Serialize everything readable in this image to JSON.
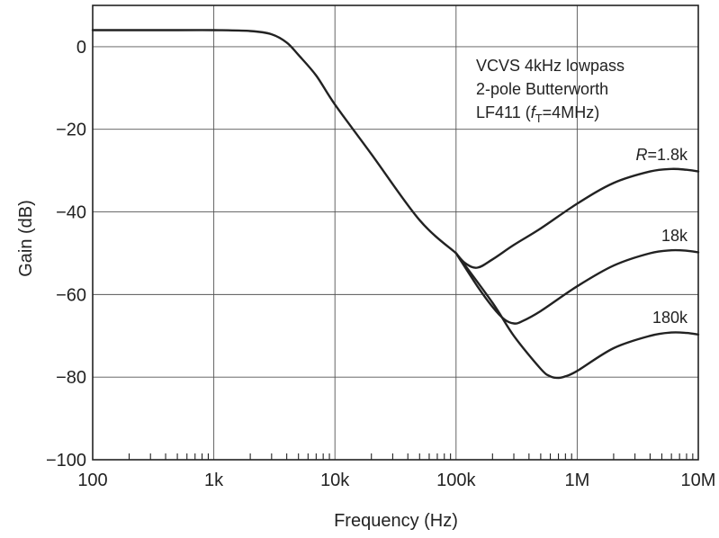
{
  "chart_data": {
    "type": "line",
    "xlabel": "Frequency (Hz)",
    "ylabel": "Gain (dB)",
    "xscale": "log",
    "xlim": [
      100,
      10000000
    ],
    "ylim": [
      -100,
      10
    ],
    "grid": true,
    "x_ticks": [
      {
        "value": 100,
        "label": "100"
      },
      {
        "value": 1000,
        "label": "1k"
      },
      {
        "value": 10000,
        "label": "10k"
      },
      {
        "value": 100000,
        "label": "100k"
      },
      {
        "value": 1000000,
        "label": "1M"
      },
      {
        "value": 10000000,
        "label": "10M"
      }
    ],
    "y_ticks": [
      {
        "value": 0,
        "label": "0"
      },
      {
        "value": -20,
        "label": "−20"
      },
      {
        "value": -40,
        "label": "−40"
      },
      {
        "value": -60,
        "label": "−60"
      },
      {
        "value": -80,
        "label": "−80"
      },
      {
        "value": -100,
        "label": "−100"
      }
    ],
    "annotation_lines": [
      {
        "text": "VCVS 4kHz lowpass"
      },
      {
        "text": "2-pole Butterworth"
      },
      {
        "parts": [
          "LF411 (",
          "f",
          "T",
          "=4MHz)"
        ]
      }
    ],
    "shared_curve": {
      "x": [
        100,
        200,
        500,
        1000,
        2000,
        3000,
        4000,
        5000,
        7000,
        10000,
        20000,
        50000,
        100000
      ],
      "y": [
        4,
        4,
        4,
        4,
        3.8,
        3,
        1,
        -2,
        -7,
        -14,
        -26,
        -42,
        -50
      ]
    },
    "series": [
      {
        "name": "R=1.8k",
        "label_parts": [
          "R",
          "=1.8k"
        ],
        "x": [
          100000,
          120000,
          150000,
          200000,
          300000,
          500000,
          1000000,
          2000000,
          4000000,
          6000000,
          8000000,
          10000000
        ],
        "y": [
          -50,
          -52.5,
          -53.5,
          -51.5,
          -48,
          -44,
          -38,
          -33,
          -30.2,
          -29.6,
          -29.8,
          -30.2
        ]
      },
      {
        "name": "18k",
        "label_parts": [
          "18k"
        ],
        "x": [
          100000,
          150000,
          200000,
          250000,
          300000,
          350000,
          500000,
          1000000,
          2000000,
          4000000,
          6000000,
          8000000,
          10000000
        ],
        "y": [
          -50,
          -58,
          -63,
          -66,
          -67,
          -66.5,
          -64,
          -58,
          -53,
          -50,
          -49.3,
          -49.4,
          -49.8
        ]
      },
      {
        "name": "180k",
        "label_parts": [
          "180k"
        ],
        "x": [
          100000,
          200000,
          300000,
          500000,
          600000,
          700000,
          800000,
          1000000,
          2000000,
          4000000,
          6000000,
          8000000,
          10000000
        ],
        "y": [
          -50,
          -62,
          -70,
          -78,
          -79.8,
          -80.2,
          -79.8,
          -78.5,
          -73,
          -70,
          -69.2,
          -69.3,
          -69.7
        ]
      }
    ]
  }
}
